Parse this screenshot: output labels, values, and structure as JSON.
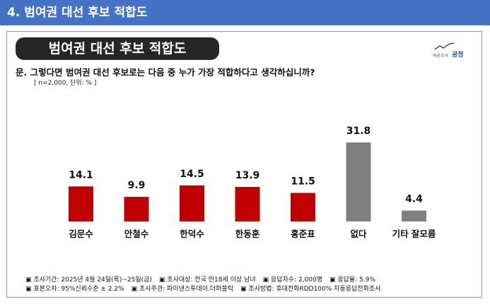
{
  "header": {
    "section_title": "4. 범여권 대선 후보 적합도"
  },
  "card": {
    "title": "범여권 대선 후보 적합도",
    "logo_small": "여론조사",
    "logo_big": "공정",
    "question": "문. 그렇다면 범여권 대선 후보로는 다음 중 누가 가장 적합하다고 생각하십니까?",
    "unit_note": "[ n=2,000, 단위: % ]"
  },
  "colors": {
    "header_blue": "#4472c4",
    "candidate_bar": "#c00000",
    "other_bar": "#808080"
  },
  "chart_data": {
    "type": "bar",
    "title": "범여권 대선 후보 적합도",
    "unit": "%",
    "categories": [
      "김문수",
      "안철수",
      "한덕수",
      "한동훈",
      "홍준표",
      "없다",
      "기타 잘모름"
    ],
    "values": [
      14.1,
      9.9,
      14.5,
      13.9,
      11.5,
      31.8,
      4.4
    ],
    "value_labels": [
      "14.1",
      "9.9",
      "14.5",
      "13.9",
      "11.5",
      "31.8",
      "4.4"
    ],
    "bar_colors": [
      "#c00000",
      "#c00000",
      "#c00000",
      "#c00000",
      "#c00000",
      "#808080",
      "#808080"
    ],
    "ylim": [
      0,
      35
    ],
    "grid": false,
    "legend": "none"
  },
  "footer": {
    "row1": [
      "▣ 조사기간: 2025년 4월 24일(목)~25일(금)",
      "▣ 조사대상: 전국 만18세 이상 남녀",
      "▣ 응답자수: 2,000명",
      "▣ 응답율: 5.9%"
    ],
    "row2": [
      "▣ 표본오차: 95%신뢰수준 ± 2.2%",
      "▣ 조사주관: 파이낸스투데이.더퍼블릭",
      "▣ 조사방법: 휴대전화RDD100% 자동응답전화조사"
    ]
  }
}
